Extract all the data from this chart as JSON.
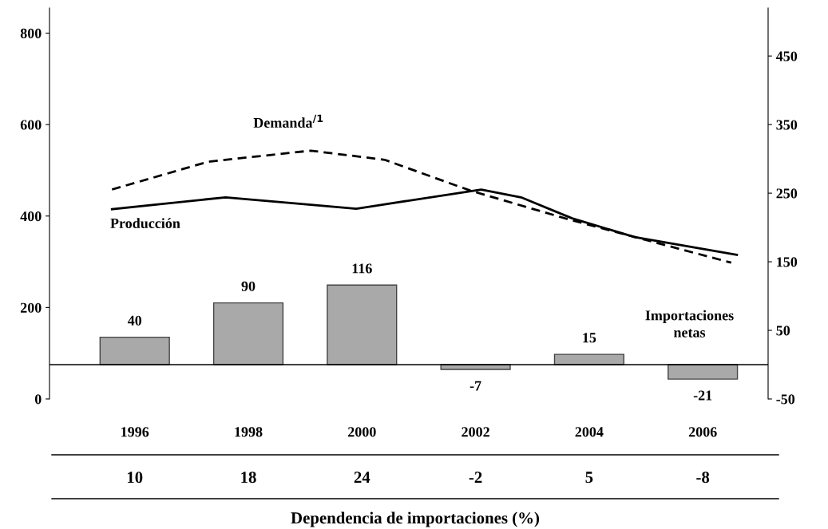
{
  "chart_data": {
    "type": "bar",
    "xlabel": "Dependencia de importaciones (%)",
    "x": [
      1996,
      1998,
      2000,
      2002,
      2004,
      2006
    ],
    "xlim": [
      1994.5,
      2007.15
    ],
    "xticks": [
      1996,
      1998,
      2000,
      2002,
      2004,
      2006
    ],
    "ylim": [
      0,
      855
    ],
    "yticks": [
      0,
      200,
      400,
      600,
      800
    ],
    "y2lim": [
      -50,
      520
    ],
    "y2ticks": [
      -50,
      50,
      150,
      250,
      350,
      450
    ],
    "grid": false,
    "legend": false,
    "series": [
      {
        "name": "Importaciones netas",
        "axis": "y2",
        "color": "#a9a9a9",
        "values": [
          40,
          90,
          116,
          -7,
          15,
          -21
        ],
        "value_labels": [
          "40",
          "90",
          "116",
          "-7",
          "15",
          "-21"
        ]
      },
      {
        "name": "Demanda$^{/1}$",
        "type": "line",
        "line_style": "dashed",
        "color": "#000000",
        "x": [
          1995.6,
          1997.3,
          1999.1,
          2000.4,
          2001.9,
          2003.6,
          2005.2,
          2006.5
        ],
        "values": [
          458,
          519,
          543,
          523,
          456,
          394,
          341,
          298
        ]
      },
      {
        "name": "Producción",
        "type": "line",
        "line_style": "solid",
        "color": "#000000",
        "x": [
          1995.6,
          1997.6,
          1999.9,
          2002.1,
          2002.8,
          2003.7,
          2004.8,
          2006.6
        ],
        "values": [
          415,
          441,
          416,
          458,
          441,
          395,
          354,
          315
        ]
      }
    ],
    "ref_lines": [
      {
        "axis": "y2",
        "value": 0,
        "color": "#000000"
      }
    ],
    "annotations": [
      "10",
      "18",
      "24",
      "-2",
      "5",
      "-8"
    ]
  }
}
